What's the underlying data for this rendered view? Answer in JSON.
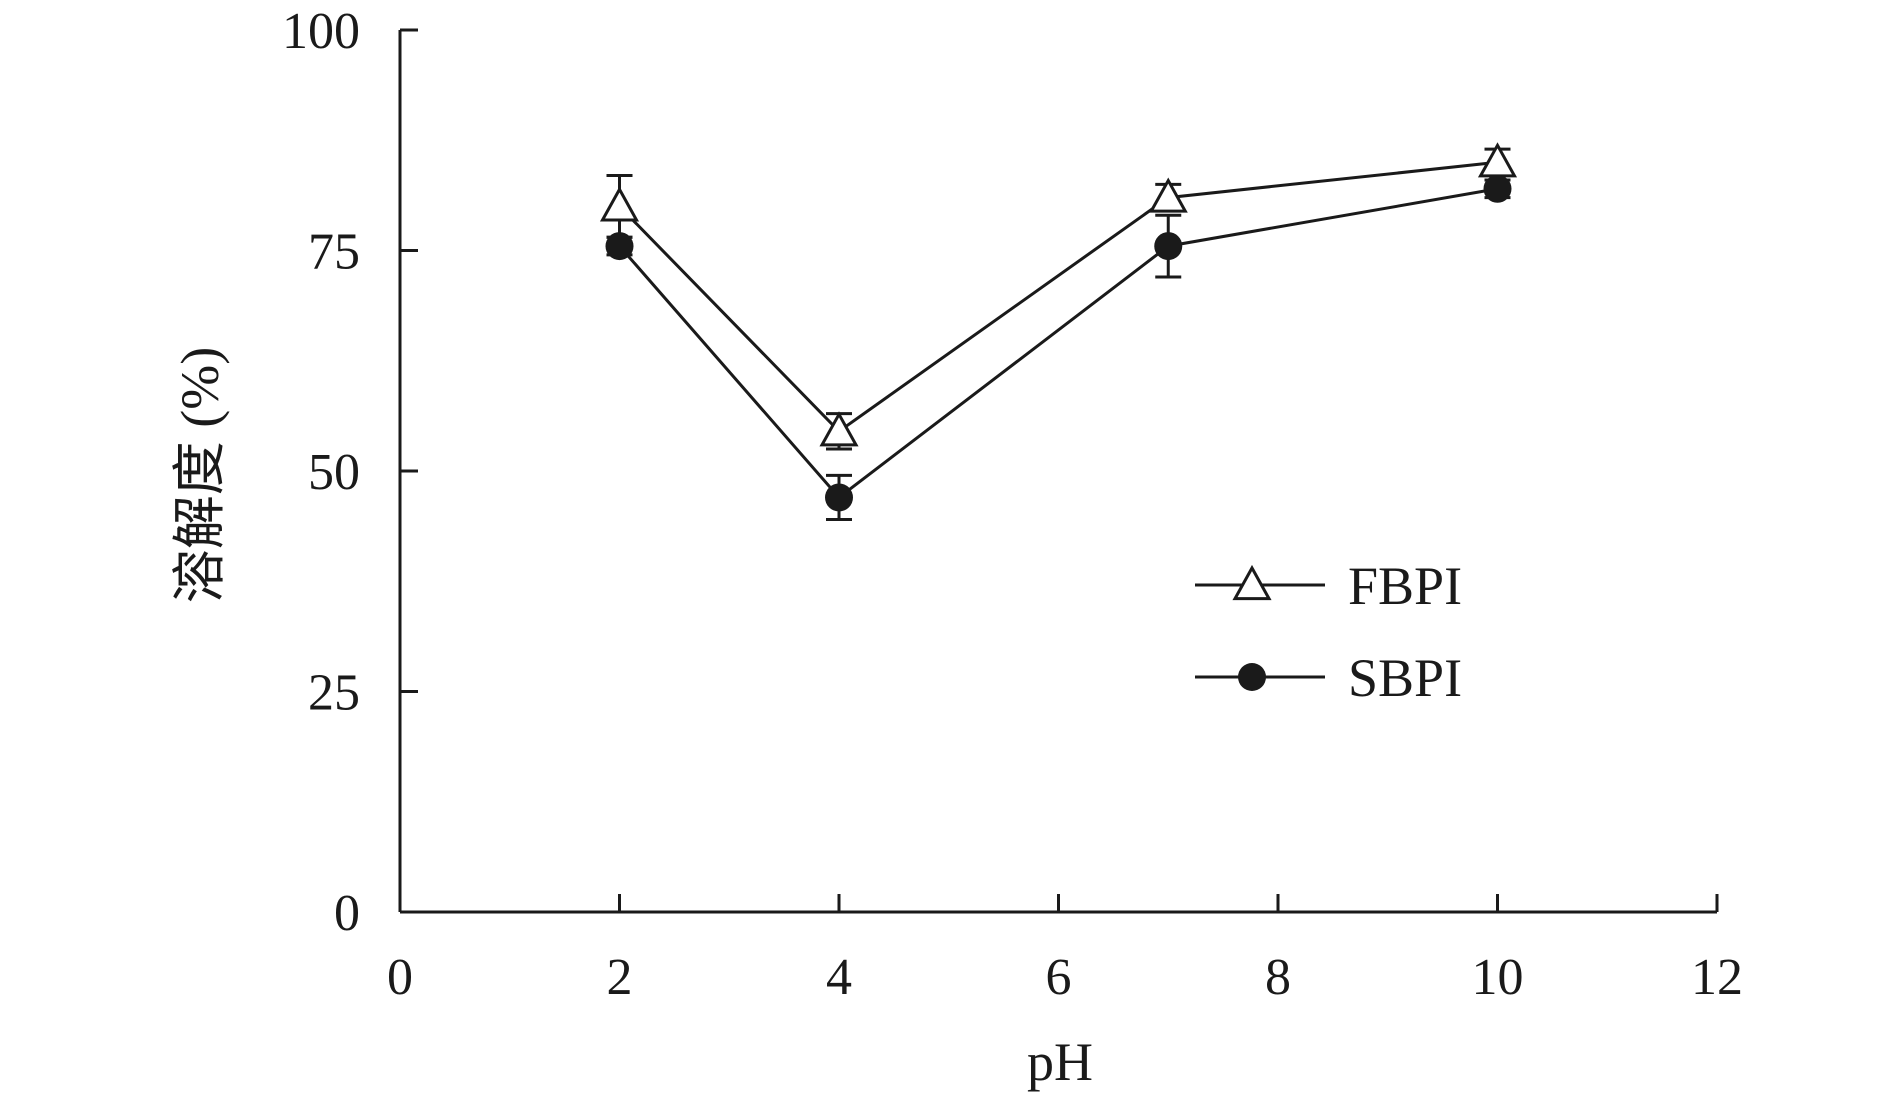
{
  "chart_data": {
    "type": "line",
    "xlabel": "pH",
    "ylabel": "溶解度 (%)",
    "xlim": [
      0,
      12
    ],
    "ylim": [
      0,
      100
    ],
    "xticks": [
      0,
      2,
      4,
      6,
      8,
      10,
      12
    ],
    "yticks": [
      0,
      25,
      50,
      75,
      100
    ],
    "grid": false,
    "legend_position": "right-middle",
    "x": [
      2,
      4,
      7,
      10
    ],
    "series": [
      {
        "name": "FBPI",
        "marker": "open-triangle",
        "values": [
          80,
          54.5,
          81,
          85
        ],
        "errors": [
          3.5,
          2,
          1.5,
          1.5
        ]
      },
      {
        "name": "SBPI",
        "marker": "filled-circle",
        "values": [
          75.5,
          47,
          75.5,
          82
        ],
        "errors": [
          1,
          2.5,
          3.5,
          1
        ]
      }
    ]
  }
}
